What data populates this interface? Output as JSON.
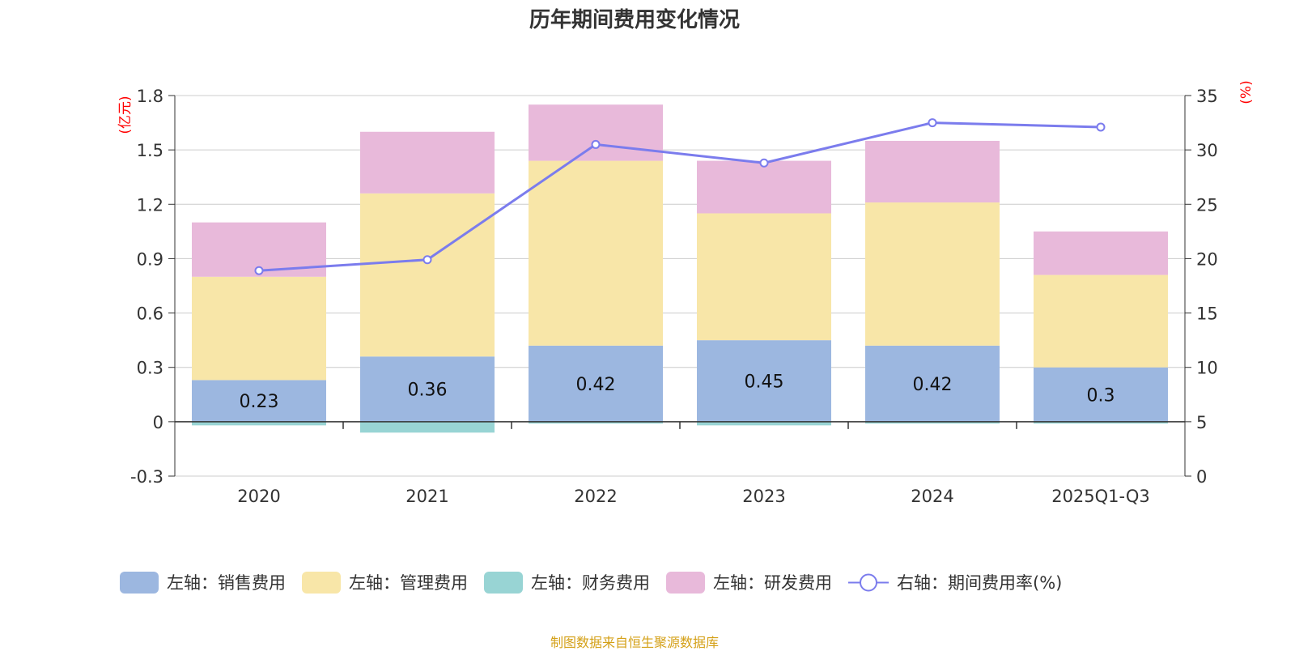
{
  "title": "历年期间费用变化情况",
  "source": "制图数据来自恒生聚源数据库",
  "colors": {
    "sales": "#9cb7e0",
    "admin": "#f8e6a8",
    "finance": "#98d4d4",
    "rd": "#e8b9da",
    "rate_line": "#7b7ced",
    "axis_unit": "#ff0000",
    "grid": "#cccccc",
    "text": "#333333"
  },
  "chart_data": {
    "type": "bar",
    "stacked": true,
    "categories": [
      "2020",
      "2021",
      "2022",
      "2023",
      "2024",
      "2025Q1-Q3"
    ],
    "series": [
      {
        "name": "左轴：销售费用",
        "key": "sales",
        "axis": "left",
        "values": [
          0.23,
          0.36,
          0.42,
          0.45,
          0.42,
          0.3
        ],
        "labels": [
          "0.23",
          "0.36",
          "0.42",
          "0.45",
          "0.42",
          "0.3"
        ]
      },
      {
        "name": "左轴：管理费用",
        "key": "admin",
        "axis": "left",
        "values": [
          0.57,
          0.9,
          1.02,
          0.7,
          0.79,
          0.51
        ]
      },
      {
        "name": "左轴：财务费用",
        "key": "finance",
        "axis": "left",
        "values": [
          -0.02,
          -0.06,
          -0.01,
          -0.02,
          -0.01,
          -0.01
        ]
      },
      {
        "name": "左轴：研发费用",
        "key": "rd",
        "axis": "left",
        "values": [
          0.3,
          0.34,
          0.31,
          0.29,
          0.34,
          0.24
        ]
      },
      {
        "name": "右轴：期间费用率(%)",
        "key": "rate",
        "axis": "right",
        "type": "line",
        "values": [
          18.9,
          19.9,
          30.5,
          28.8,
          32.5,
          32.1
        ]
      }
    ],
    "left_axis": {
      "unit": "(亿元)",
      "min": -0.3,
      "max": 1.8,
      "ticks": [
        -0.3,
        0,
        0.3,
        0.6,
        0.9,
        1.2,
        1.5,
        1.8
      ],
      "tick_labels": [
        "-0.3",
        "0",
        "0.3",
        "0.6",
        "0.9",
        "1.2",
        "1.5",
        "1.8"
      ]
    },
    "right_axis": {
      "unit": "(%)",
      "min": 0,
      "max": 35,
      "ticks": [
        0,
        5,
        10,
        15,
        20,
        25,
        30,
        35
      ],
      "tick_labels": [
        "0",
        "5",
        "10",
        "15",
        "20",
        "25",
        "30",
        "35"
      ]
    },
    "grid": true,
    "legend_position": "bottom"
  }
}
